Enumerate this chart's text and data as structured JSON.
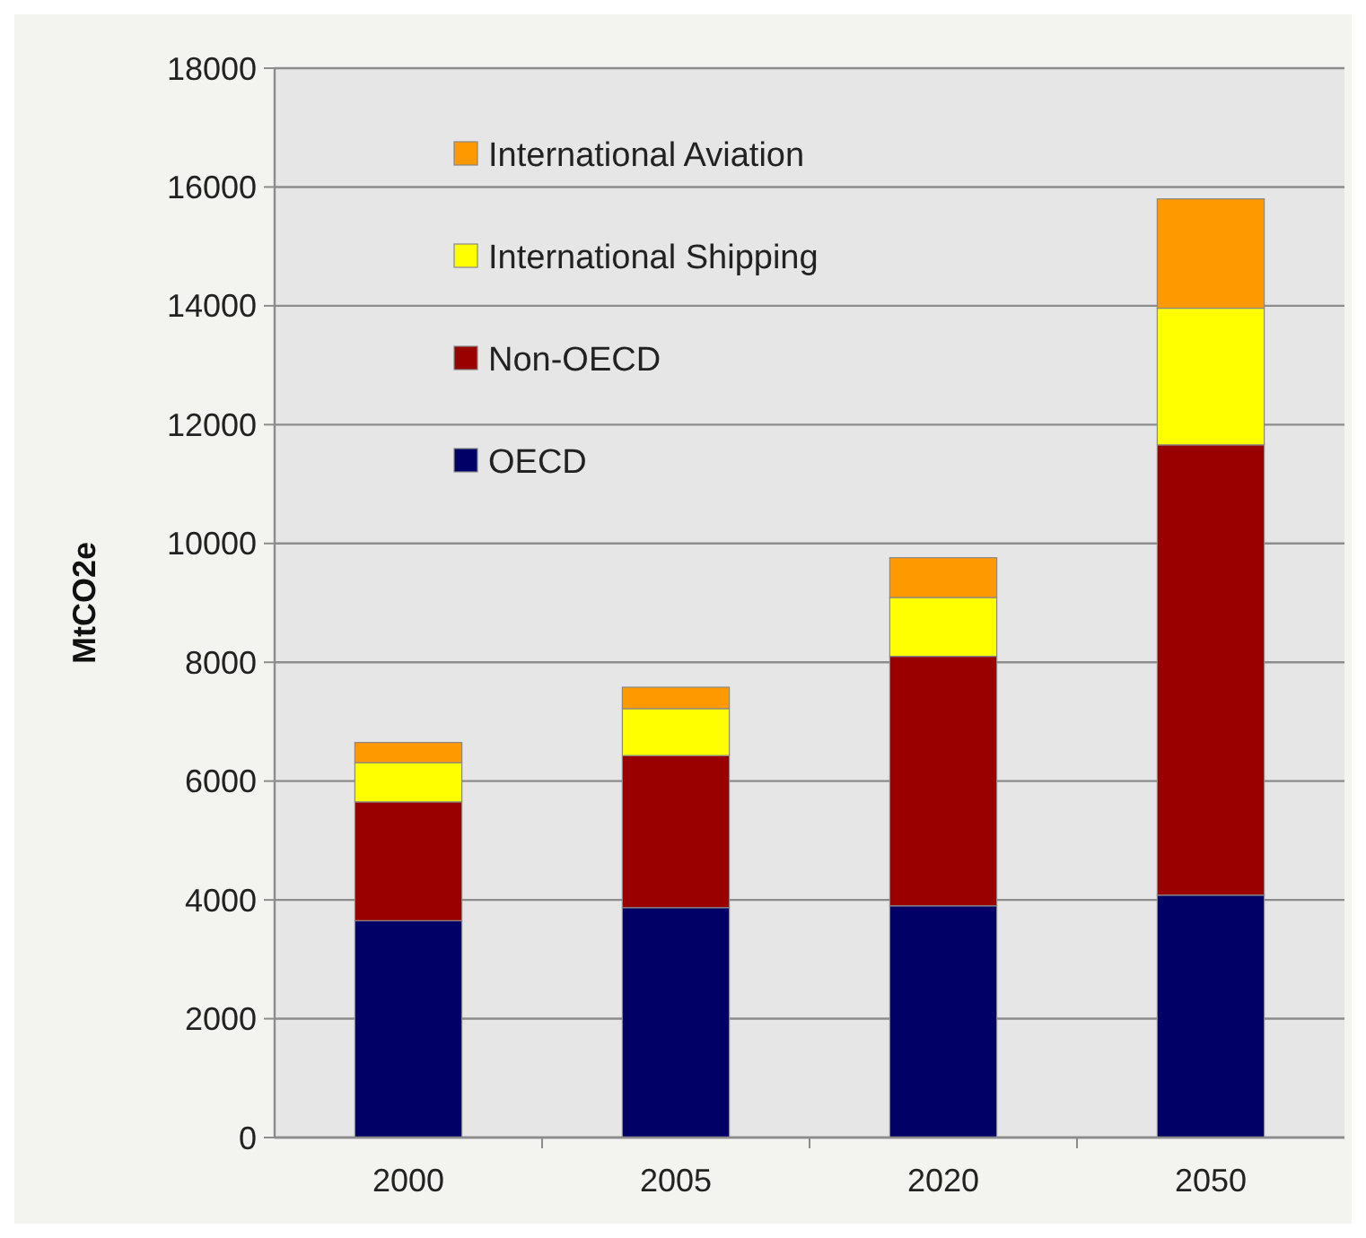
{
  "chart_data": {
    "type": "bar",
    "stacked": true,
    "ylabel": "MtCO2e",
    "categories": [
      "2000",
      "2005",
      "2020",
      "2050"
    ],
    "series": [
      {
        "name": "OECD",
        "color": "#000066",
        "values": [
          3650,
          3870,
          3900,
          4080
        ]
      },
      {
        "name": "Non-OECD",
        "color": "#990000",
        "values": [
          2000,
          2560,
          4200,
          7580
        ]
      },
      {
        "name": "International Shipping",
        "color": "#ffff00",
        "values": [
          660,
          790,
          990,
          2300
        ]
      },
      {
        "name": "International Aviation",
        "color": "#ff9900",
        "values": [
          340,
          360,
          670,
          1840
        ]
      }
    ],
    "ylim": [
      0,
      18000
    ],
    "yticks": [
      0,
      2000,
      4000,
      6000,
      8000,
      10000,
      12000,
      14000,
      16000,
      18000
    ],
    "grid": "y",
    "legend": "top left"
  }
}
